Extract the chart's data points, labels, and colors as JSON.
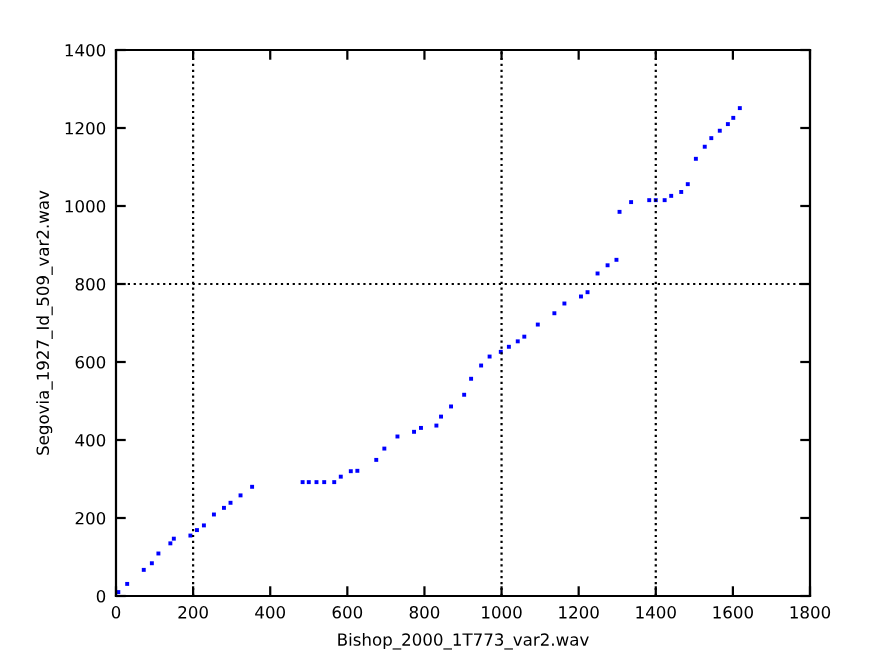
{
  "chart_data": {
    "type": "scatter",
    "xlabel": "Bishop_2000_1T773_var2.wav",
    "ylabel": "Segovia_1927_Id_509_var2.wav",
    "xlim": [
      0,
      1800
    ],
    "ylim": [
      0,
      1400
    ],
    "xticks": [
      0,
      200,
      400,
      600,
      800,
      1000,
      1200,
      1400,
      1600,
      1800
    ],
    "yticks": [
      0,
      200,
      400,
      600,
      800,
      1000,
      1200,
      1400
    ],
    "marker": "square",
    "grid": false,
    "ref_lines": [
      {
        "axis": "x",
        "value": 200,
        "line_style": "dotted",
        "color": "#000000"
      },
      {
        "axis": "x",
        "value": 1000,
        "line_style": "dotted",
        "color": "#000000"
      },
      {
        "axis": "x",
        "value": 1400,
        "line_style": "dotted",
        "color": "#000000"
      },
      {
        "axis": "y",
        "value": 800,
        "line_style": "dotted",
        "color": "#000000"
      }
    ],
    "series": [
      {
        "color": "#0000ff",
        "x": [
          6,
          29,
          72,
          93,
          110,
          141,
          150,
          193,
          210,
          228,
          254,
          280,
          297,
          323,
          353,
          484,
          500,
          520,
          540,
          566,
          583,
          609,
          626,
          675,
          696,
          730,
          773,
          791,
          831,
          843,
          869,
          903,
          921,
          947,
          969,
          998,
          1019,
          1042,
          1059,
          1094,
          1137,
          1163,
          1206,
          1223,
          1249,
          1275,
          1298,
          1306,
          1336,
          1383,
          1400,
          1423,
          1440,
          1466,
          1483,
          1504,
          1527,
          1544,
          1566,
          1587,
          1601,
          1618
        ],
        "values": [
          10,
          31,
          67,
          84,
          109,
          135,
          147,
          155,
          169,
          181,
          209,
          226,
          239,
          258,
          280,
          292,
          292,
          292,
          292,
          292,
          306,
          320,
          321,
          349,
          378,
          409,
          421,
          431,
          437,
          460,
          486,
          516,
          557,
          591,
          614,
          626,
          639,
          653,
          665,
          696,
          725,
          750,
          768,
          779,
          827,
          848,
          862,
          985,
          1010,
          1015,
          1015,
          1015,
          1026,
          1036,
          1056,
          1121,
          1152,
          1174,
          1193,
          1210,
          1226,
          1251
        ]
      }
    ]
  }
}
